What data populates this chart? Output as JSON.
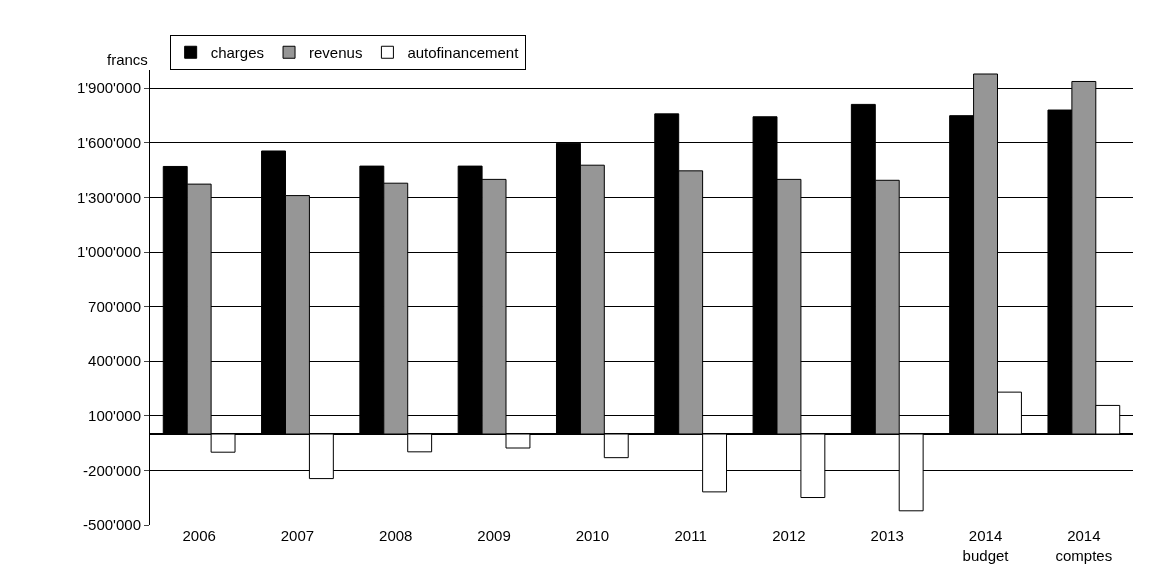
{
  "chart_data": {
    "type": "bar",
    "ylabel": "francs",
    "categories": [
      "2006",
      "2007",
      "2008",
      "2009",
      "2010",
      "2011",
      "2012",
      "2013",
      "2014\nbudget",
      "2014\ncomptes"
    ],
    "series": [
      {
        "name": "charges",
        "color": "#000000",
        "values": [
          1470000,
          1555000,
          1472000,
          1472000,
          1597000,
          1759000,
          1743000,
          1811000,
          1749000,
          1780000
        ]
      },
      {
        "name": "revenus",
        "color": "#969696",
        "values": [
          1373000,
          1310000,
          1378000,
          1399000,
          1477000,
          1446000,
          1399000,
          1394000,
          1978000,
          1937000
        ]
      },
      {
        "name": "autofinancement",
        "color": "#ffffff",
        "values": [
          -100000,
          -245000,
          -98000,
          -77000,
          -130000,
          -318000,
          -349000,
          -422000,
          230000,
          157000
        ]
      }
    ],
    "ylim": [
      -500000,
      2000000
    ],
    "yticks": [
      {
        "value": -500000,
        "label": "-500'000"
      },
      {
        "value": -200000,
        "label": "-200'000"
      },
      {
        "value": 100000,
        "label": "100'000"
      },
      {
        "value": 400000,
        "label": "400'000"
      },
      {
        "value": 700000,
        "label": "700'000"
      },
      {
        "value": 1000000,
        "label": "1'000'000"
      },
      {
        "value": 1300000,
        "label": "1'300'000"
      },
      {
        "value": 1600000,
        "label": "1'600'000"
      },
      {
        "value": 1900000,
        "label": "1'900'000"
      }
    ],
    "grid": "y",
    "legend": "top left"
  }
}
